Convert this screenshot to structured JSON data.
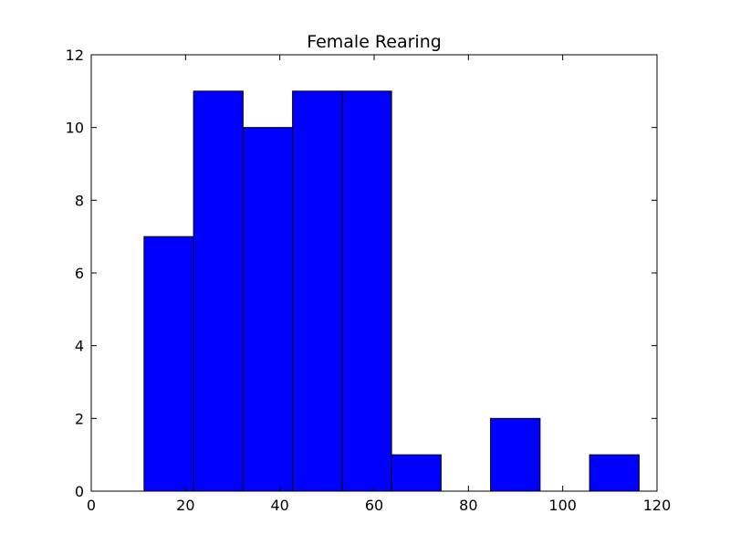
{
  "chart_data": {
    "type": "bar",
    "title": "Female Rearing",
    "xlabel": "",
    "ylabel": "",
    "xlim": [
      0,
      120
    ],
    "ylim": [
      0,
      12
    ],
    "xticks": [
      0,
      20,
      40,
      60,
      80,
      100,
      120
    ],
    "yticks": [
      0,
      2,
      4,
      6,
      8,
      10,
      12
    ],
    "grid": false,
    "bar_color": "#0000ff",
    "edge_color": "#000000",
    "bins": [
      {
        "x0": 11.2,
        "x1": 21.7,
        "count": 7
      },
      {
        "x0": 21.7,
        "x1": 32.2,
        "count": 11
      },
      {
        "x0": 32.2,
        "x1": 42.7,
        "count": 10
      },
      {
        "x0": 42.7,
        "x1": 53.2,
        "count": 11
      },
      {
        "x0": 53.2,
        "x1": 63.7,
        "count": 11
      },
      {
        "x0": 63.7,
        "x1": 74.2,
        "count": 1
      },
      {
        "x0": 74.2,
        "x1": 84.7,
        "count": 0
      },
      {
        "x0": 84.7,
        "x1": 95.2,
        "count": 2
      },
      {
        "x0": 95.2,
        "x1": 105.7,
        "count": 0
      },
      {
        "x0": 105.7,
        "x1": 116.2,
        "count": 1
      }
    ]
  }
}
